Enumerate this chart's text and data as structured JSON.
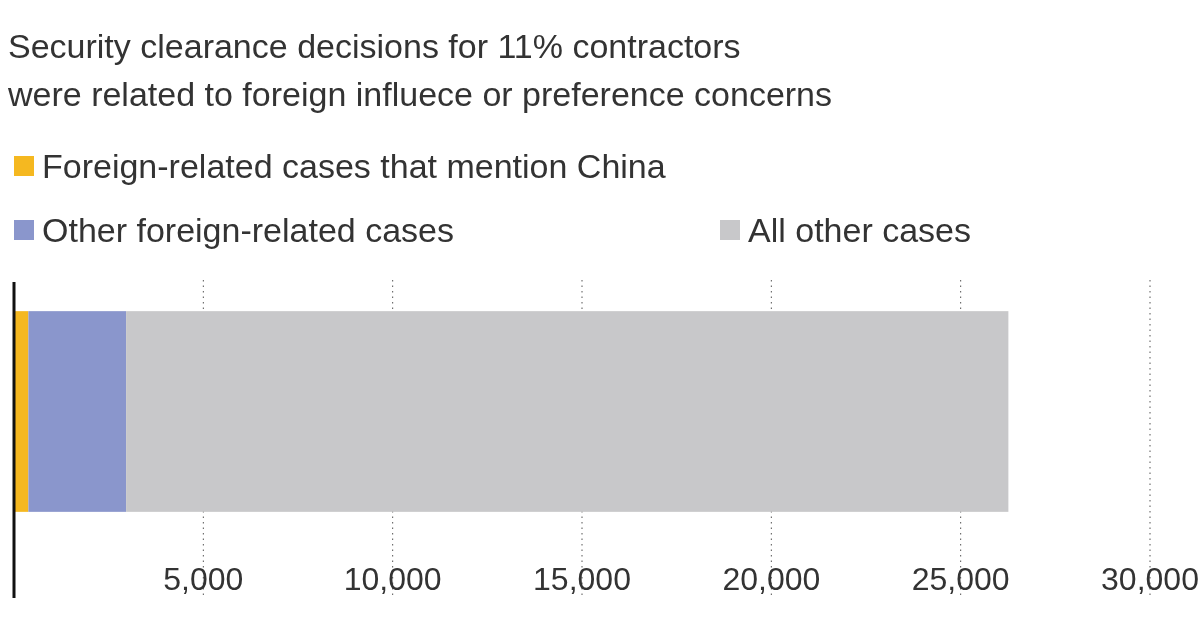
{
  "chart_data": {
    "type": "bar",
    "orientation": "horizontal",
    "stacked": true,
    "title": "Security clearance decisions for 11% contractors",
    "subtitle": "were related to foreign influece or preference concerns",
    "categories": [
      null
    ],
    "series": [
      {
        "name": "Foreign-related cases that mention China",
        "color": "#f5b820",
        "values": [
          380
        ]
      },
      {
        "name": "Other foreign-related cases",
        "color": "#8a96cc",
        "values": [
          2580
        ]
      },
      {
        "name": "All other cases",
        "color": "#c8c8ca",
        "values": [
          23300
        ]
      }
    ],
    "xlim": [
      0,
      30000
    ],
    "xticks": [
      {
        "value": 0,
        "label": null
      },
      {
        "value": 5000,
        "label": "5,000"
      },
      {
        "value": 10000,
        "label": "10,000"
      },
      {
        "value": 15000,
        "label": "15,000"
      },
      {
        "value": 20000,
        "label": "20,000"
      },
      {
        "value": 25000,
        "label": "25,000"
      },
      {
        "value": 30000,
        "label": "30,000"
      }
    ],
    "grid": "x",
    "legend": "top left"
  }
}
